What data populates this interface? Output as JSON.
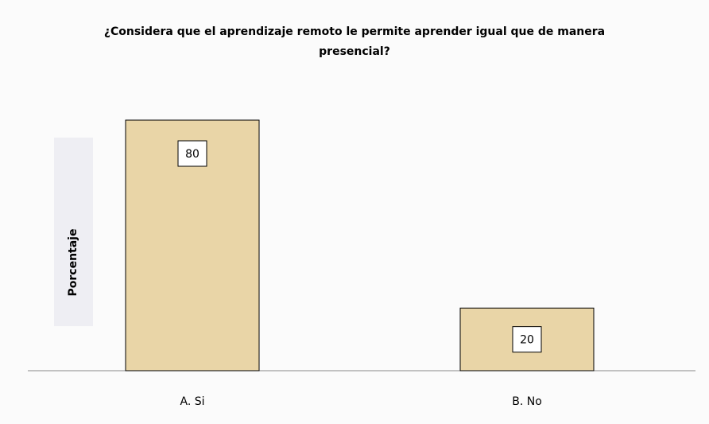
{
  "chart_data": {
    "type": "bar",
    "title": "¿Considera que el aprendizaje remoto le permite aprender igual que de manera presencial?",
    "y_label": "Porcentaje",
    "categories": [
      "A. Si",
      "B. No"
    ],
    "values": [
      80,
      20
    ],
    "color": "#e9d5a7"
  }
}
